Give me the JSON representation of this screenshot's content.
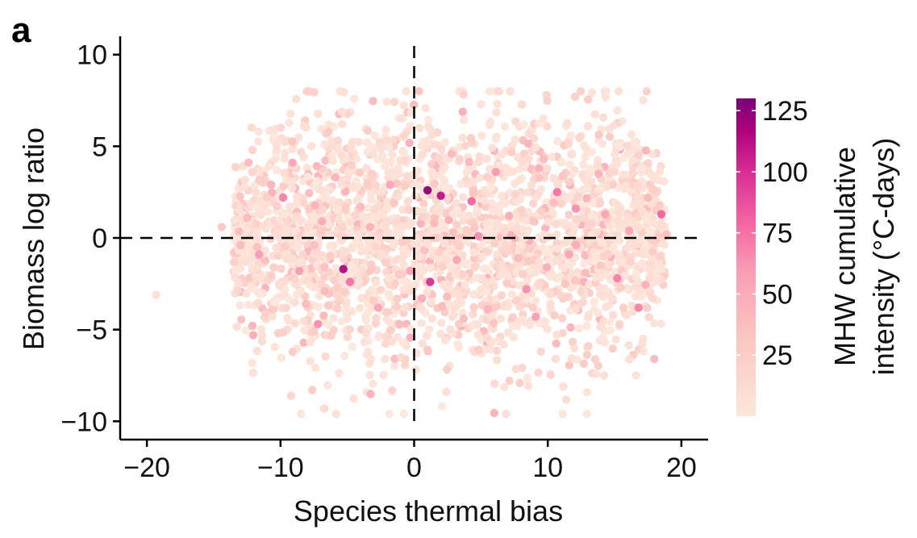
{
  "panel_label": "a",
  "chart_data": {
    "type": "scatter",
    "xlabel": "Species thermal bias",
    "ylabel": "Biomass log ratio",
    "xlim": [
      -22,
      22
    ],
    "ylim": [
      -11,
      11
    ],
    "xticks": [
      -20,
      -10,
      0,
      10,
      20
    ],
    "xtick_labels": [
      "−20",
      "−10",
      "0",
      "10",
      "20"
    ],
    "yticks": [
      -10,
      -5,
      0,
      5,
      10
    ],
    "ytick_labels": [
      "−10",
      "−5",
      "0",
      "5",
      "10"
    ],
    "reference_lines": [
      {
        "axis": "x",
        "value": 0,
        "style": "dashed"
      },
      {
        "axis": "y",
        "value": 0,
        "style": "dashed"
      }
    ],
    "grid": false,
    "colorbar": {
      "label_line1": "MHW cumulative",
      "label_line2": "intensity (°C-days)",
      "range": [
        0,
        130
      ],
      "ticks": [
        25,
        50,
        75,
        100,
        125
      ],
      "tick_labels": [
        "25",
        "50",
        "75",
        "100",
        "125"
      ],
      "colors": [
        "#fde7dc",
        "#fcb9b2",
        "#f768a1",
        "#dd3497",
        "#ae017e",
        "#7a0177"
      ]
    },
    "points": [
      [
        1.0,
        2.6,
        125
      ],
      [
        -5.3,
        -1.7,
        115
      ],
      [
        2.0,
        2.3,
        110
      ],
      [
        1.2,
        -2.4,
        100
      ],
      [
        18.5,
        1.3,
        80
      ],
      [
        16.8,
        -3.8,
        70
      ],
      [
        -4.8,
        -2.4,
        75
      ],
      [
        10.7,
        2.5,
        75
      ],
      [
        15.2,
        -2.2,
        70
      ],
      [
        4.3,
        2.0,
        80
      ],
      [
        -9.8,
        2.2,
        70
      ],
      [
        -7.2,
        -4.7,
        65
      ],
      [
        -11.6,
        -0.9,
        60
      ],
      [
        -8.6,
        -1.8,
        60
      ],
      [
        -9.1,
        4.1,
        55
      ],
      [
        6.1,
        3.6,
        60
      ],
      [
        12.1,
        1.6,
        65
      ],
      [
        8.4,
        -2.8,
        65
      ],
      [
        -2.7,
        -3.8,
        55
      ],
      [
        4.8,
        0.1,
        65
      ],
      [
        9.1,
        -4.3,
        60
      ],
      [
        -0.3,
        -1.8,
        55
      ],
      [
        -6.9,
        0.9,
        50
      ],
      [
        16.1,
        0.4,
        55
      ],
      [
        -13.0,
        -0.4,
        40
      ],
      [
        -12.1,
        -4.8,
        45
      ],
      [
        -1.8,
        2.9,
        55
      ],
      [
        14.3,
        1.3,
        55
      ],
      [
        3.2,
        -1.2,
        55
      ],
      [
        11.6,
        -0.9,
        55
      ],
      [
        -3.3,
        0.6,
        45
      ],
      [
        7.1,
        1.2,
        50
      ],
      [
        0.6,
        -3.3,
        50
      ],
      [
        -10.7,
        2.9,
        45
      ],
      [
        13.8,
        3.5,
        45
      ],
      [
        5.5,
        -3.9,
        45
      ],
      [
        -5.9,
        3.3,
        45
      ],
      [
        2.8,
        4.6,
        40
      ],
      [
        -8.1,
        -3.6,
        40
      ],
      [
        9.7,
        4.3,
        40
      ],
      [
        -1.1,
        -4.7,
        40
      ],
      [
        17.5,
        2.2,
        40
      ],
      [
        -12.5,
        1.1,
        40
      ],
      [
        1.5,
        0.8,
        40
      ],
      [
        -4.0,
        1.7,
        40
      ],
      [
        12.8,
        -1.9,
        40
      ],
      [
        7.8,
        -1.1,
        40
      ],
      [
        -6.7,
        -2.9,
        40
      ],
      [
        3.7,
        -4.4,
        40
      ],
      [
        -14.4,
        0.6,
        30
      ],
      [
        -19.3,
        -3.1,
        10
      ],
      [
        18.9,
        0.2,
        35
      ]
    ]
  }
}
